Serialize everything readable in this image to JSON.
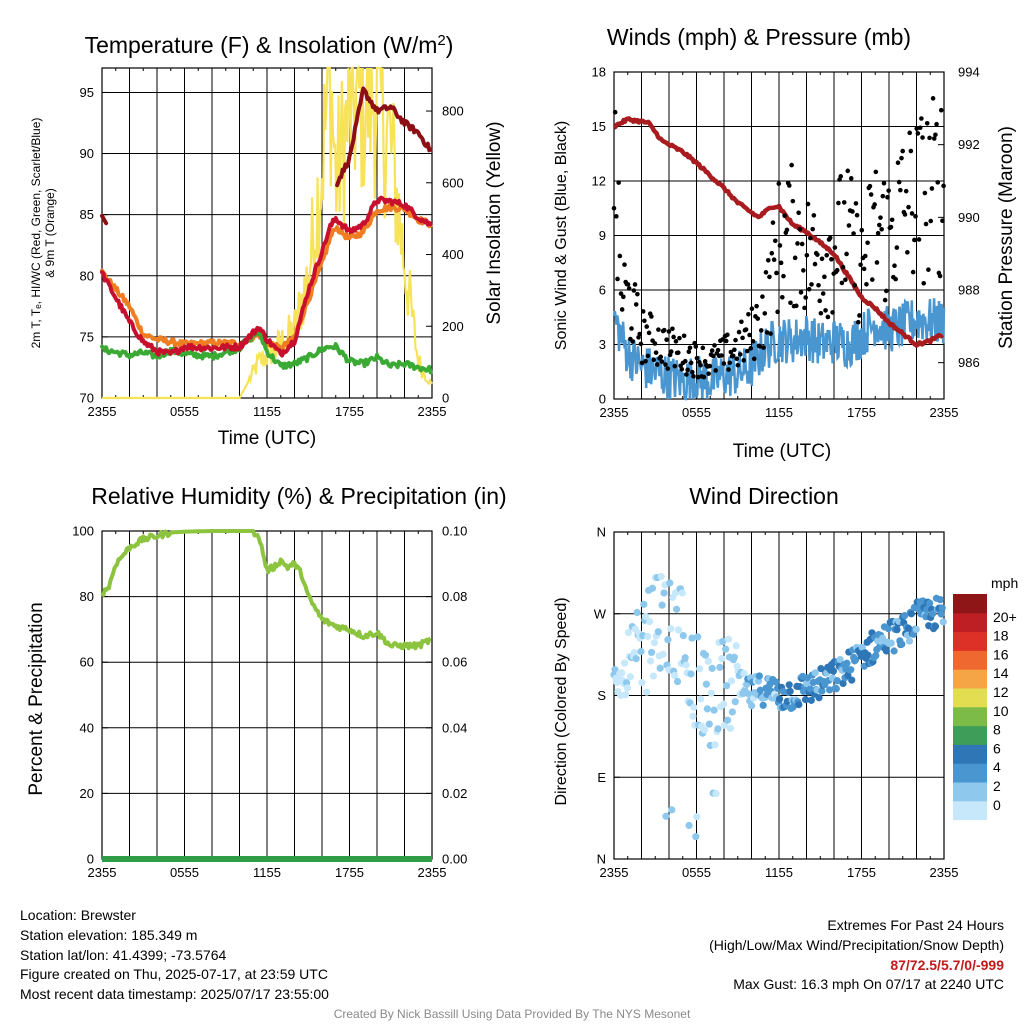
{
  "colors": {
    "red": "#c8102e",
    "dark_red": "#8b0f14",
    "orange": "#ef7d22",
    "green": "#3aaa35",
    "yellow": "#f7e35a",
    "blue": "#4a96d0",
    "black": "#000000",
    "maroon": "#a81c1f",
    "rh_green": "#8cc43f",
    "precip_green": "#2f9d45",
    "extremes_red": "#c01a1a",
    "credit_gray": "#8a8a8a"
  },
  "time_ticks": [
    "2355",
    "0555",
    "1155",
    "1755",
    "2355"
  ],
  "chart_data": [
    {
      "id": "temperature",
      "type": "line",
      "title": "Temperature (F) & Insolation (W/m²)",
      "title_main": "Temperature (F) & Insolation (W/m",
      "title_sup": "2",
      "title_tail": ")",
      "xlabel": "Time (UTC)",
      "ylabel_left_line1": "2m T, Tₑ, HI/WC (Red, Green, Scarlet/Blue)",
      "ylabel_left_line2": "& 9m T (Orange)",
      "ylabel_right": "Solar Insolation (Yellow)",
      "ylim_left": [
        70,
        97
      ],
      "ylim_right": [
        0,
        920
      ],
      "left_ticks": [
        "70",
        "75",
        "80",
        "85",
        "90",
        "95"
      ],
      "right_ticks": [
        "0",
        "200",
        "400",
        "600",
        "800"
      ],
      "x_hours": [
        0,
        2,
        3,
        4,
        5,
        6,
        8,
        10,
        11.4,
        12,
        13,
        14,
        15,
        16,
        16.6,
        17,
        18,
        19,
        20,
        21,
        22,
        23,
        24
      ],
      "series": [
        {
          "color_key": "red",
          "values": [
            80.2,
            76.2,
            74.6,
            73.8,
            73.6,
            74.2,
            74.1,
            74.2,
            75.8,
            74.8,
            73.6,
            74.7,
            78.8,
            82.0,
            84.0,
            84.7,
            83.6,
            84.2,
            86.2,
            86.1,
            85.8,
            84.8,
            84.1
          ]
        },
        {
          "color_key": "dark_red",
          "values": [
            84.9,
            null,
            null,
            null,
            null,
            null,
            null,
            null,
            null,
            null,
            null,
            null,
            null,
            null,
            null,
            87.4,
            89.6,
            95.2,
            93.5,
            93.8,
            92.5,
            91.7,
            90.1
          ]
        },
        {
          "color_key": "orange",
          "values": [
            80.3,
            77.5,
            75.2,
            74.8,
            74.6,
            74.4,
            74.5,
            74.5,
            75.2,
            74.6,
            74.0,
            75.0,
            78.0,
            81.0,
            83.1,
            84.0,
            83.0,
            83.6,
            85.4,
            85.6,
            85.5,
            84.6,
            84.2
          ]
        },
        {
          "color_key": "green",
          "values": [
            74.0,
            73.5,
            73.7,
            73.4,
            73.9,
            73.6,
            73.4,
            74.1,
            75.5,
            73.8,
            72.6,
            72.8,
            73.3,
            74.0,
            74.2,
            74.2,
            73.0,
            72.8,
            73.3,
            72.6,
            72.8,
            72.5,
            72.3
          ]
        }
      ],
      "insolation_values": [
        0,
        0,
        0,
        0,
        0,
        0,
        0,
        0,
        100,
        120,
        150,
        190,
        340,
        650,
        920,
        600,
        800,
        830,
        850,
        700,
        380,
        100,
        40
      ]
    },
    {
      "id": "winds",
      "type": "scatter",
      "title": "Winds (mph) & Pressure (mb)",
      "xlabel": "Time (UTC)",
      "ylabel_left": "Sonic Wind & Gust (Blue, Black)",
      "ylabel_right": "Station Pressure (Maroon)",
      "ylim_left": [
        0,
        18
      ],
      "ylim_right": [
        985,
        994
      ],
      "left_ticks": [
        "0",
        "3",
        "6",
        "9",
        "12",
        "15",
        "18"
      ],
      "right_ticks": [
        "986",
        "988",
        "990",
        "992",
        "994"
      ],
      "pressure_hours": [
        0,
        1,
        2.5,
        3.5,
        5,
        6,
        8,
        9,
        10.5,
        11.5,
        12,
        13,
        14,
        15,
        16,
        17,
        18,
        19,
        20,
        21,
        22,
        23,
        24
      ],
      "pressure_values": [
        992.5,
        992.7,
        992.6,
        992.1,
        991.8,
        991.5,
        990.8,
        990.4,
        990.0,
        990.3,
        990.3,
        989.8,
        989.6,
        989.3,
        989.0,
        988.4,
        987.8,
        987.5,
        987.1,
        986.8,
        986.5,
        986.6,
        986.8
      ],
      "wind_hours": [
        0,
        1,
        2,
        3,
        4,
        5,
        6,
        7,
        8,
        9,
        10,
        11,
        12,
        13,
        14,
        15,
        16,
        17,
        18,
        19,
        20,
        21,
        22,
        23,
        24
      ],
      "wind_values": [
        4.5,
        2.5,
        1.8,
        1.5,
        1.2,
        1.0,
        1.2,
        1.0,
        1.3,
        1.4,
        1.8,
        2.8,
        3.3,
        3.2,
        3.5,
        3.0,
        3.2,
        3.0,
        3.5,
        4.2,
        3.8,
        4.0,
        4.4,
        4.3,
        4.2
      ],
      "gust_hours": [
        0,
        0.5,
        1,
        2,
        3,
        4,
        5,
        6,
        7,
        8,
        9,
        10,
        11,
        12,
        13,
        14,
        15,
        16,
        17,
        18,
        19,
        20,
        21,
        22,
        23,
        24
      ],
      "gust_values": [
        13,
        6,
        5.5,
        3.5,
        3.2,
        2.8,
        2.5,
        2.2,
        2.0,
        2.4,
        2.8,
        3.5,
        5.0,
        8.5,
        9.0,
        8.0,
        7.5,
        8.5,
        9.0,
        7.0,
        9.5,
        9.0,
        10.5,
        11.0,
        11.5,
        12.0
      ]
    },
    {
      "id": "humidity",
      "type": "line",
      "title": "Relative Humidity (%) & Precipitation (in)",
      "ylabel_left": "Percent & Precipitation",
      "ylim_left": [
        0,
        100
      ],
      "ylim_right": [
        0.0,
        0.1
      ],
      "left_ticks": [
        "0",
        "20",
        "40",
        "60",
        "80",
        "100"
      ],
      "right_ticks": [
        "0.00",
        "0.02",
        "0.04",
        "0.06",
        "0.08",
        "0.10"
      ],
      "rh_hours": [
        0,
        0.5,
        1,
        2,
        3,
        4,
        5,
        6,
        8,
        10,
        11,
        11.5,
        12,
        12.5,
        13,
        13.5,
        14,
        14.5,
        15,
        16,
        17,
        18,
        19,
        20,
        21,
        22,
        23,
        24
      ],
      "rh_values": [
        81,
        83,
        90,
        95,
        97.5,
        98.5,
        99.5,
        99.8,
        100,
        100,
        100,
        97,
        88,
        89,
        91,
        89,
        90,
        87,
        80,
        73,
        71,
        70,
        68,
        69,
        65,
        65,
        65,
        67
      ],
      "precip_value": 0.0
    },
    {
      "id": "wind_direction",
      "type": "scatter",
      "title": "Wind Direction",
      "ylabel_left": "Direction (Colored By Speed)",
      "left_ticks": [
        "N",
        "E",
        "S",
        "W",
        "N"
      ],
      "legend_title": "mph",
      "legend_labels": [
        "0",
        "2",
        "4",
        "6",
        "8",
        "10",
        "12",
        "14",
        "16",
        "18",
        "20+"
      ],
      "legend_colors": [
        "#c6e8fa",
        "#8ec8ec",
        "#4a96d0",
        "#2e76b6",
        "#3e9d58",
        "#7dbb49",
        "#e3dd52",
        "#f6a546",
        "#ef6830",
        "#dd3127",
        "#bd1f25",
        "#8e1617"
      ],
      "trend_hours": [
        0,
        1,
        2,
        3,
        4,
        5,
        6,
        7,
        8,
        9,
        10,
        11,
        12,
        13,
        14,
        15,
        16,
        17,
        18,
        19,
        20,
        21,
        22,
        23,
        24
      ],
      "trend_dirs": [
        190,
        200,
        225,
        260,
        255,
        245,
        195,
        175,
        190,
        190,
        182,
        188,
        180,
        182,
        188,
        192,
        200,
        210,
        225,
        235,
        245,
        250,
        265,
        270,
        270
      ]
    }
  ],
  "info_left": {
    "location": "Location: Brewster",
    "elevation": "Station elevation: 185.349 m",
    "latlon": "Station lat/lon: 41.4399; -73.5764",
    "created": "Figure created on Thu, 2025-07-17, at 23:59 UTC",
    "recent": "Most recent data timestamp: 2025/07/17 23:55:00"
  },
  "info_right": {
    "line1": "Extremes For Past 24 Hours",
    "line2": "(High/Low/Max Wind/Precipitation/Snow Depth)",
    "values": "87/72.5/5.7/0/-999",
    "gust": "Max Gust: 16.3 mph On 07/17 at 2240 UTC"
  },
  "credit": "Created By Nick Bassill Using Data Provided By The NYS Mesonet"
}
